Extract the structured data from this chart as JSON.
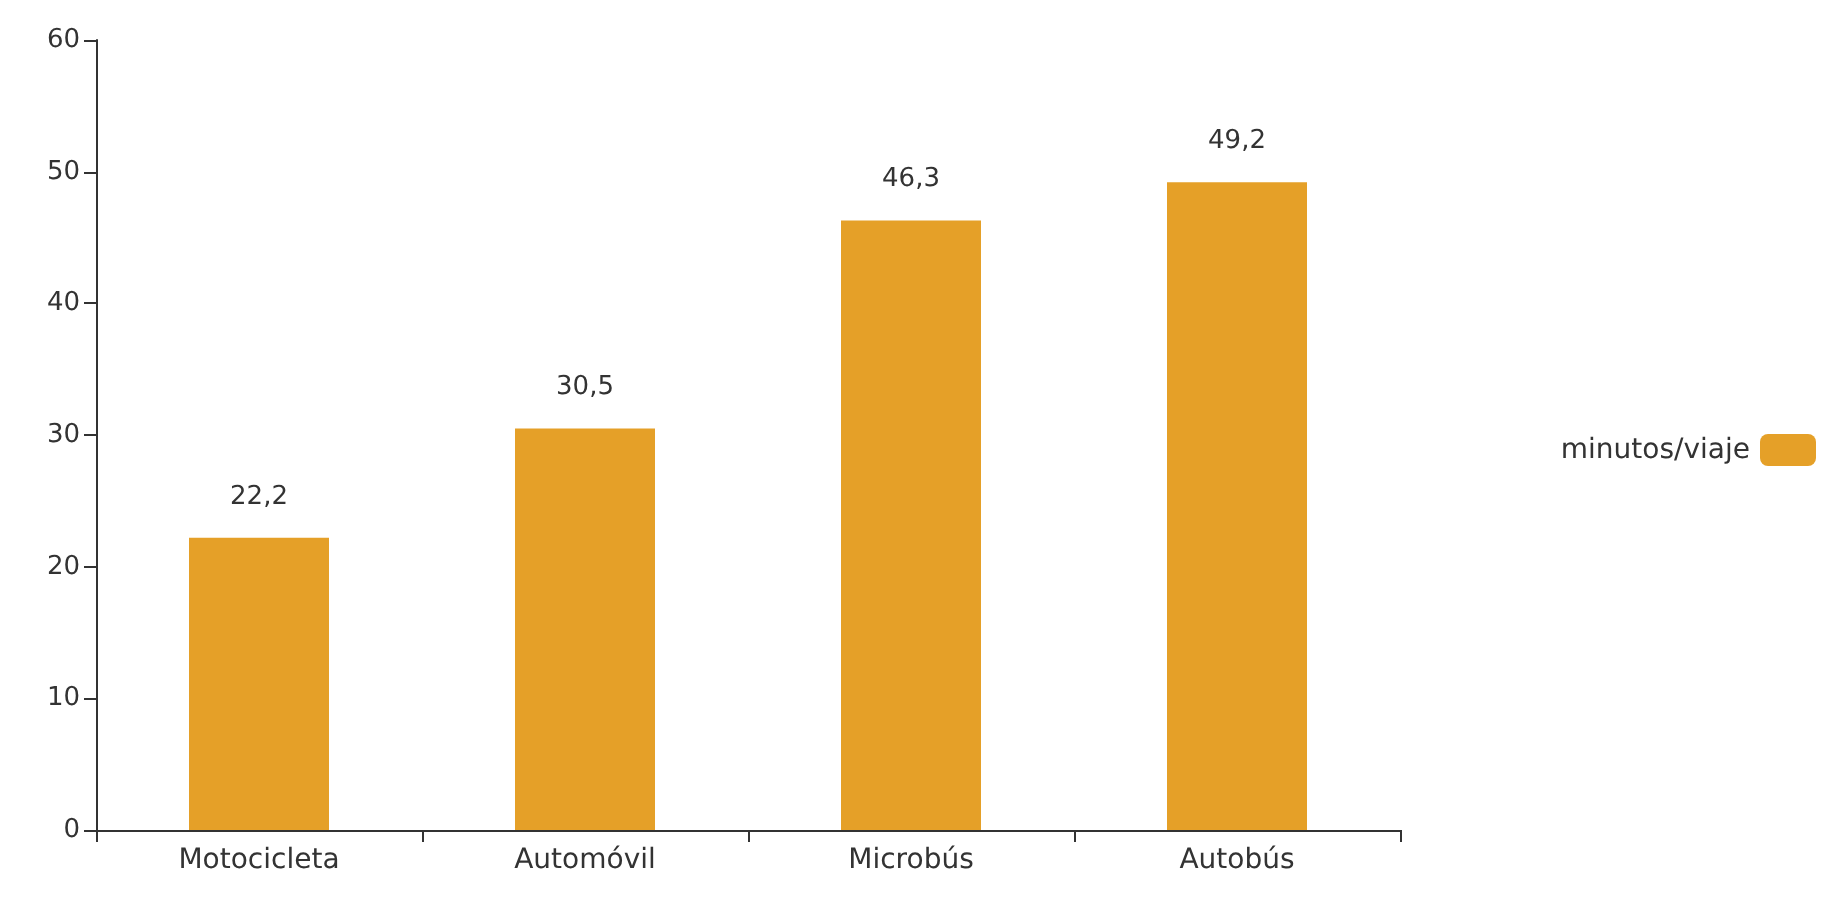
{
  "chart_data": {
    "type": "bar",
    "categories": [
      "Motocicleta",
      "Automóvil",
      "Microbús",
      "Autobús"
    ],
    "series": [
      {
        "name": "minutos/viaje",
        "color": "#e5a028",
        "values": [
          22.2,
          30.5,
          46.3,
          49.2
        ],
        "value_labels": [
          "22,2",
          "30,5",
          "46,3",
          "49,2"
        ]
      }
    ],
    "ylim": [
      0,
      60
    ],
    "yticks": [
      0,
      10,
      20,
      30,
      40,
      50,
      60
    ],
    "grid": false,
    "legend": "right"
  }
}
